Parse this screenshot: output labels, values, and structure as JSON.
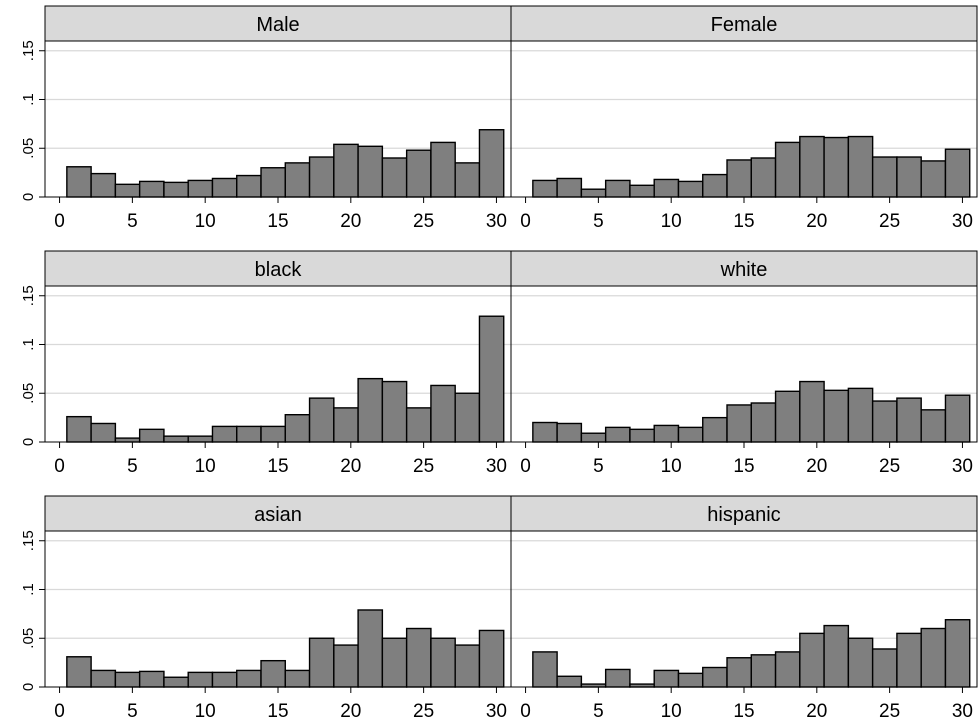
{
  "chart_data": {
    "type": "bar",
    "layout": "facet-grid",
    "rows": 3,
    "cols": 2,
    "xlim": [
      -1,
      31
    ],
    "ylim": [
      0,
      0.16
    ],
    "xticks": [
      0,
      5,
      10,
      15,
      20,
      25,
      30
    ],
    "xtick_labels": [
      "0",
      "5",
      "10",
      "15",
      "20",
      "25",
      "30"
    ],
    "yticks": [
      0,
      0.05,
      0.1,
      0.15
    ],
    "ytick_labels": [
      "0",
      ".05",
      ".1",
      ".15"
    ],
    "bin_start": 0.5,
    "bin_width": 1.6667,
    "bar_color": "#7f7f7f",
    "strip_color": "#d9d9d9",
    "gridline_color": "#d9d9d9",
    "panels": [
      {
        "title": "Male",
        "values": [
          0.031,
          0.024,
          0.013,
          0.016,
          0.015,
          0.017,
          0.019,
          0.022,
          0.03,
          0.035,
          0.041,
          0.054,
          0.052,
          0.04,
          0.048,
          0.056,
          0.035,
          0.069
        ]
      },
      {
        "title": "Female",
        "values": [
          0.017,
          0.019,
          0.008,
          0.017,
          0.012,
          0.018,
          0.016,
          0.023,
          0.038,
          0.04,
          0.056,
          0.062,
          0.061,
          0.062,
          0.041,
          0.041,
          0.037,
          0.049
        ]
      },
      {
        "title": "black",
        "values": [
          0.026,
          0.019,
          0.004,
          0.013,
          0.006,
          0.006,
          0.016,
          0.016,
          0.016,
          0.028,
          0.045,
          0.035,
          0.065,
          0.062,
          0.035,
          0.058,
          0.05,
          0.129
        ]
      },
      {
        "title": "white",
        "values": [
          0.02,
          0.019,
          0.009,
          0.015,
          0.013,
          0.017,
          0.015,
          0.025,
          0.038,
          0.04,
          0.052,
          0.062,
          0.053,
          0.055,
          0.042,
          0.045,
          0.033,
          0.048
        ]
      },
      {
        "title": "asian",
        "values": [
          0.031,
          0.017,
          0.015,
          0.016,
          0.01,
          0.015,
          0.015,
          0.017,
          0.027,
          0.017,
          0.05,
          0.043,
          0.079,
          0.05,
          0.06,
          0.05,
          0.043,
          0.058
        ]
      },
      {
        "title": "hispanic",
        "values": [
          0.036,
          0.011,
          0.003,
          0.018,
          0.003,
          0.017,
          0.014,
          0.02,
          0.03,
          0.033,
          0.036,
          0.055,
          0.063,
          0.05,
          0.039,
          0.055,
          0.06,
          0.069
        ]
      }
    ]
  }
}
